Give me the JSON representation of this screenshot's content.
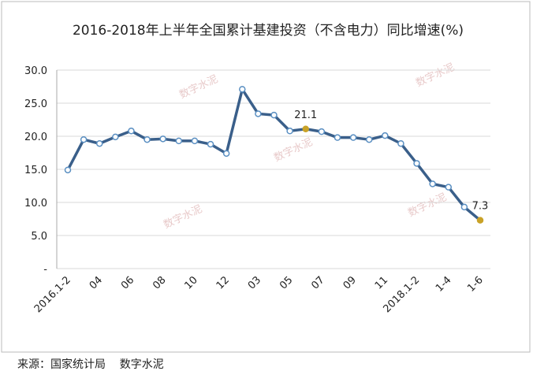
{
  "chart_data": {
    "type": "line",
    "title": "2016-2018年上半年全国累计基建投资（不含电力）同比增速(%)",
    "categories": [
      "2016.1-2",
      null,
      "04",
      null,
      "06",
      null,
      "08",
      null,
      "10",
      null,
      "12",
      null,
      "03",
      null,
      "05",
      null,
      "07",
      null,
      "09",
      null,
      "11",
      null,
      "2018.1-2",
      null,
      "1-4",
      null,
      "1-6"
    ],
    "series": [
      {
        "color": "#3a5f8a",
        "values": [
          14.9,
          19.5,
          18.9,
          19.9,
          20.8,
          19.5,
          19.6,
          19.3,
          19.3,
          18.8,
          17.4,
          27.1,
          23.4,
          23.2,
          20.8,
          21.1,
          20.7,
          19.8,
          19.8,
          19.5,
          20.1,
          18.9,
          15.9,
          12.8,
          12.3,
          9.3,
          7.3
        ],
        "value_labels": [
          null,
          null,
          null,
          null,
          null,
          null,
          null,
          null,
          null,
          null,
          null,
          null,
          null,
          null,
          null,
          "21.1",
          null,
          null,
          null,
          null,
          null,
          null,
          null,
          null,
          null,
          null,
          "7.3"
        ]
      }
    ],
    "ylim": [
      0,
      30
    ],
    "yticks": [
      {
        "value": 0,
        "label": "-"
      },
      {
        "value": 5,
        "label": "5.0"
      },
      {
        "value": 10,
        "label": "10.0"
      },
      {
        "value": 15,
        "label": "15.0"
      },
      {
        "value": 20,
        "label": "20.0"
      },
      {
        "value": 25,
        "label": "25.0"
      },
      {
        "value": 30,
        "label": "30.0"
      }
    ],
    "grid": true,
    "marker_color": "#ffffff",
    "highlight_color": "#c9a227",
    "watermark": "数字水泥",
    "source": "来源：国家统计局    数字水泥"
  }
}
